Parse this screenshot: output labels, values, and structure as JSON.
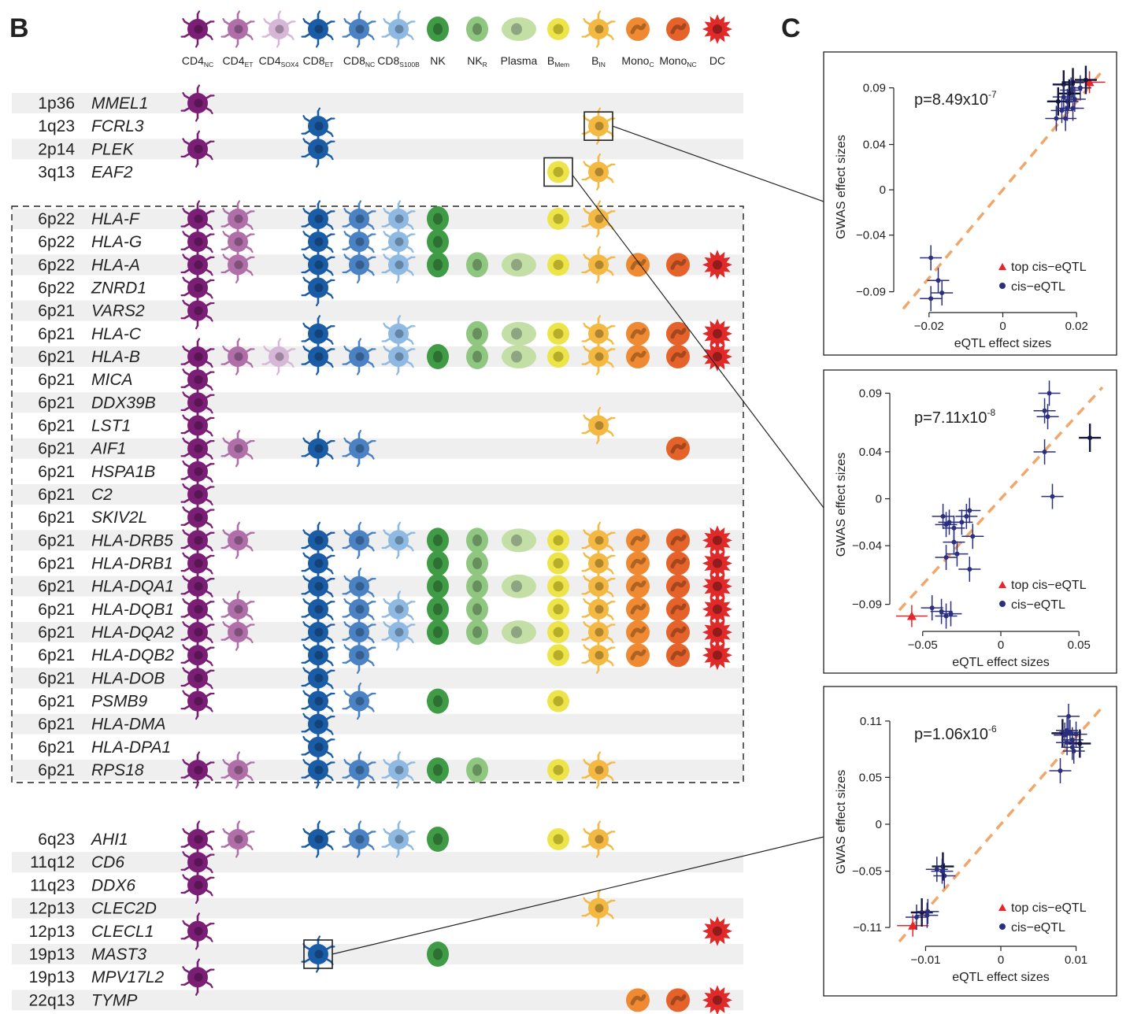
{
  "panel_b": {
    "label": "B",
    "cell_types": [
      {
        "main": "CD4",
        "sub": "NC",
        "color": "#7b1e76",
        "shape": "star"
      },
      {
        "main": "CD4",
        "sub": "ET",
        "color": "#b06fa9",
        "shape": "star"
      },
      {
        "main": "CD4",
        "sub": "SOX4",
        "color": "#d7b7d8",
        "shape": "star"
      },
      {
        "main": "CD8",
        "sub": "ET",
        "color": "#1a5da6",
        "shape": "star"
      },
      {
        "main": "CD8",
        "sub": "NC",
        "color": "#4a82c4",
        "shape": "star"
      },
      {
        "main": "CD8",
        "sub": "S100B",
        "color": "#8db9e2",
        "shape": "star"
      },
      {
        "main": "NK",
        "sub": "",
        "color": "#3f9b45",
        "shape": "oval"
      },
      {
        "main": "NK",
        "sub": "R",
        "color": "#8fc781",
        "shape": "oval"
      },
      {
        "main": "Plasma",
        "sub": "",
        "color": "#c4dfa6",
        "shape": "wide"
      },
      {
        "main": "B",
        "sub": "Mem",
        "color": "#ede44a",
        "shape": "round"
      },
      {
        "main": "B",
        "sub": "IN",
        "color": "#f4b942",
        "shape": "star"
      },
      {
        "main": "Mono",
        "sub": "C",
        "color": "#f08a32",
        "shape": "mono"
      },
      {
        "main": "Mono",
        "sub": "NC",
        "color": "#e5632a",
        "shape": "mono"
      },
      {
        "main": "DC",
        "sub": "",
        "color": "#e02a2a",
        "shape": "dc"
      }
    ],
    "genes": [
      {
        "locus": "1p36",
        "gene": "MMEL1",
        "cells": [
          0
        ]
      },
      {
        "locus": "1q23",
        "gene": "FCRL3",
        "cells": [
          3,
          10
        ]
      },
      {
        "locus": "2p14",
        "gene": "PLEK",
        "cells": [
          0,
          3
        ]
      },
      {
        "locus": "3q13",
        "gene": "EAF2",
        "cells": [
          9,
          10
        ]
      },
      {
        "locus": "6p22",
        "gene": "HLA-F",
        "cells": [
          0,
          1,
          3,
          4,
          5,
          6,
          9,
          10
        ]
      },
      {
        "locus": "6p22",
        "gene": "HLA-G",
        "cells": [
          0,
          1,
          3,
          4,
          5,
          6
        ]
      },
      {
        "locus": "6p22",
        "gene": "HLA-A",
        "cells": [
          0,
          1,
          3,
          4,
          5,
          6,
          7,
          8,
          9,
          10,
          11,
          12,
          13
        ]
      },
      {
        "locus": "6p22",
        "gene": "ZNRD1",
        "cells": [
          0,
          3
        ]
      },
      {
        "locus": "6p21",
        "gene": "VARS2",
        "cells": [
          0
        ]
      },
      {
        "locus": "6p21",
        "gene": "HLA-C",
        "cells": [
          3,
          5,
          7,
          8,
          9,
          10,
          11,
          12,
          13
        ]
      },
      {
        "locus": "6p21",
        "gene": "HLA-B",
        "cells": [
          0,
          1,
          2,
          3,
          4,
          5,
          6,
          7,
          8,
          9,
          10,
          11,
          12,
          13
        ]
      },
      {
        "locus": "6p21",
        "gene": "MICA",
        "cells": [
          0
        ]
      },
      {
        "locus": "6p21",
        "gene": "DDX39B",
        "cells": [
          0
        ]
      },
      {
        "locus": "6p21",
        "gene": "LST1",
        "cells": [
          0,
          10
        ]
      },
      {
        "locus": "6p21",
        "gene": "AIF1",
        "cells": [
          0,
          1,
          3,
          4,
          12
        ]
      },
      {
        "locus": "6p21",
        "gene": "HSPA1B",
        "cells": [
          0
        ]
      },
      {
        "locus": "6p21",
        "gene": "C2",
        "cells": [
          0
        ]
      },
      {
        "locus": "6p21",
        "gene": "SKIV2L",
        "cells": [
          0
        ]
      },
      {
        "locus": "6p21",
        "gene": "HLA-DRB5",
        "cells": [
          0,
          1,
          3,
          4,
          5,
          6,
          7,
          8,
          9,
          10,
          11,
          12,
          13
        ]
      },
      {
        "locus": "6p21",
        "gene": "HLA-DRB1",
        "cells": [
          0,
          3,
          6,
          7,
          9,
          10,
          11,
          12,
          13
        ]
      },
      {
        "locus": "6p21",
        "gene": "HLA-DQA1",
        "cells": [
          0,
          3,
          4,
          6,
          7,
          8,
          9,
          10,
          11,
          12,
          13
        ]
      },
      {
        "locus": "6p21",
        "gene": "HLA-DQB1",
        "cells": [
          0,
          1,
          3,
          4,
          5,
          6,
          7,
          9,
          10,
          11,
          12,
          13
        ]
      },
      {
        "locus": "6p21",
        "gene": "HLA-DQA2",
        "cells": [
          0,
          1,
          3,
          4,
          5,
          6,
          7,
          8,
          9,
          10,
          11,
          12,
          13
        ]
      },
      {
        "locus": "6p21",
        "gene": "HLA-DQB2",
        "cells": [
          0,
          3,
          4,
          9,
          10,
          11,
          12,
          13
        ]
      },
      {
        "locus": "6p21",
        "gene": "HLA-DOB",
        "cells": [
          0,
          3
        ]
      },
      {
        "locus": "6p21",
        "gene": "PSMB9",
        "cells": [
          0,
          3,
          4,
          6,
          9
        ]
      },
      {
        "locus": "6p21",
        "gene": "HLA-DMA",
        "cells": [
          3
        ]
      },
      {
        "locus": "6p21",
        "gene": "HLA-DPA1",
        "cells": [
          3
        ]
      },
      {
        "locus": "6p21",
        "gene": "RPS18",
        "cells": [
          0,
          1,
          3,
          4,
          5,
          6,
          7,
          9,
          10
        ]
      },
      {
        "locus": "6q23",
        "gene": "AHI1",
        "cells": [
          0,
          1,
          3,
          4,
          5,
          6,
          9,
          10
        ]
      },
      {
        "locus": "11q12",
        "gene": "CD6",
        "cells": [
          0
        ]
      },
      {
        "locus": "11q23",
        "gene": "DDX6",
        "cells": [
          0
        ]
      },
      {
        "locus": "12p13",
        "gene": "CLEC2D",
        "cells": [
          10
        ]
      },
      {
        "locus": "12p13",
        "gene": "CLECL1",
        "cells": [
          0,
          13
        ]
      },
      {
        "locus": "19p13",
        "gene": "MAST3",
        "cells": [
          3,
          6
        ]
      },
      {
        "locus": "19p13",
        "gene": "MPV17L2",
        "cells": [
          0
        ]
      },
      {
        "locus": "22q13",
        "gene": "TYMP",
        "cells": [
          11,
          12,
          13
        ]
      }
    ]
  },
  "panel_c": {
    "label": "C",
    "legend": {
      "top": "top cis−eQTL",
      "cis": "cis−eQTL"
    },
    "colors": {
      "top": "#e8262a",
      "cis": "#2b2f7e",
      "dark": "#14163f",
      "diag": "#f0a76c"
    }
  },
  "chart_data": [
    {
      "type": "scatter",
      "title": "",
      "annotation": {
        "p_base": "p=8.49x10",
        "p_exp": "-7"
      },
      "xlabel": "eQTL effect sizes",
      "ylabel": "GWAS effect sizes",
      "xlim": [
        -0.027,
        0.027
      ],
      "ylim": [
        -0.1,
        0.105
      ],
      "xticks": [
        -0.02,
        0,
        0.02
      ],
      "xtick_labels": [
        "−0.02",
        "0",
        "0.02"
      ],
      "yticks": [
        -0.09,
        -0.04,
        0,
        0.04,
        0.09
      ],
      "ytick_labels": [
        "−0.09",
        "−0.04",
        "0",
        "0.04",
        "0.09"
      ],
      "linked_cell": {
        "gene": "FCRL3",
        "cell": "B_IN"
      },
      "points": [
        {
          "x": 0.0235,
          "y": 0.095,
          "top": true
        },
        {
          "x": 0.019,
          "y": 0.095,
          "dark": true
        },
        {
          "x": 0.021,
          "y": 0.09
        },
        {
          "x": 0.0225,
          "y": 0.097,
          "dark": true
        },
        {
          "x": 0.0165,
          "y": 0.093,
          "dark": true
        },
        {
          "x": 0.0185,
          "y": 0.088
        },
        {
          "x": 0.018,
          "y": 0.085,
          "dark": true
        },
        {
          "x": 0.0165,
          "y": 0.082
        },
        {
          "x": 0.0175,
          "y": 0.078
        },
        {
          "x": 0.015,
          "y": 0.078,
          "dark": true
        },
        {
          "x": 0.0195,
          "y": 0.08
        },
        {
          "x": 0.0175,
          "y": 0.072
        },
        {
          "x": 0.016,
          "y": 0.07
        },
        {
          "x": 0.019,
          "y": 0.072
        },
        {
          "x": 0.0145,
          "y": 0.063
        },
        {
          "x": 0.017,
          "y": 0.063
        },
        {
          "x": -0.0195,
          "y": -0.06
        },
        {
          "x": -0.0175,
          "y": -0.08
        },
        {
          "x": -0.0165,
          "y": -0.091
        },
        {
          "x": -0.0195,
          "y": -0.096
        }
      ]
    },
    {
      "type": "scatter",
      "title": "",
      "annotation": {
        "p_base": "p=7.11x10",
        "p_exp": "-8"
      },
      "xlabel": "eQTL effect sizes",
      "ylabel": "GWAS effect sizes",
      "xlim": [
        -0.065,
        0.065
      ],
      "ylim": [
        -0.105,
        0.095
      ],
      "xticks": [
        -0.05,
        0,
        0.05
      ],
      "xtick_labels": [
        "−0.05",
        "0",
        "0.05"
      ],
      "yticks": [
        -0.09,
        -0.04,
        0,
        0.04,
        0.09
      ],
      "ytick_labels": [
        "−0.09",
        "−0.04",
        "0",
        "0.04",
        "0.09"
      ],
      "linked_cell": {
        "gene": "EAF2",
        "cell": "B_Mem"
      },
      "points": [
        {
          "x": -0.057,
          "y": -0.1,
          "top": true
        },
        {
          "x": -0.044,
          "y": -0.093
        },
        {
          "x": -0.038,
          "y": -0.096
        },
        {
          "x": -0.035,
          "y": -0.1
        },
        {
          "x": -0.032,
          "y": -0.098
        },
        {
          "x": -0.035,
          "y": -0.05
        },
        {
          "x": -0.028,
          "y": -0.047
        },
        {
          "x": -0.03,
          "y": -0.037
        },
        {
          "x": -0.02,
          "y": -0.06
        },
        {
          "x": -0.035,
          "y": -0.022
        },
        {
          "x": -0.033,
          "y": -0.02
        },
        {
          "x": -0.03,
          "y": -0.025
        },
        {
          "x": -0.025,
          "y": -0.02
        },
        {
          "x": -0.022,
          "y": -0.015
        },
        {
          "x": -0.018,
          "y": -0.032
        },
        {
          "x": -0.02,
          "y": -0.01
        },
        {
          "x": -0.037,
          "y": -0.015
        },
        {
          "x": 0.028,
          "y": 0.075
        },
        {
          "x": 0.03,
          "y": 0.07
        },
        {
          "x": 0.031,
          "y": 0.09
        },
        {
          "x": 0.028,
          "y": 0.04
        },
        {
          "x": 0.033,
          "y": 0.002
        },
        {
          "x": 0.057,
          "y": 0.052,
          "dark": true
        }
      ]
    },
    {
      "type": "scatter",
      "title": "",
      "annotation": {
        "p_base": "p=1.06x10",
        "p_exp": "-6"
      },
      "xlabel": "eQTL effect sizes",
      "ylabel": "GWAS effect sizes",
      "xlim": [
        -0.0135,
        0.0135
      ],
      "ylim": [
        -0.12,
        0.125
      ],
      "xticks": [
        -0.01,
        0,
        0.01
      ],
      "xtick_labels": [
        "−0.01",
        "0",
        "0.01"
      ],
      "yticks": [
        -0.11,
        -0.05,
        0,
        0.05,
        0.11
      ],
      "ytick_labels": [
        "−0.11",
        "−0.05",
        "0",
        "0.05",
        "0.11"
      ],
      "linked_cell": {
        "gene": "MAST3",
        "cell": "CD8_ET"
      },
      "points": [
        {
          "x": -0.0117,
          "y": -0.108,
          "top": true
        },
        {
          "x": -0.0112,
          "y": -0.099
        },
        {
          "x": -0.0105,
          "y": -0.094,
          "dark": true
        },
        {
          "x": -0.0098,
          "y": -0.097
        },
        {
          "x": -0.0097,
          "y": -0.093
        },
        {
          "x": -0.0075,
          "y": -0.055
        },
        {
          "x": -0.0077,
          "y": -0.045,
          "dark": true
        },
        {
          "x": -0.0085,
          "y": -0.048
        },
        {
          "x": -0.0078,
          "y": -0.05
        },
        {
          "x": 0.0082,
          "y": 0.097,
          "dark": true
        },
        {
          "x": 0.0085,
          "y": 0.095
        },
        {
          "x": 0.009,
          "y": 0.115
        },
        {
          "x": 0.0095,
          "y": 0.09
        },
        {
          "x": 0.0088,
          "y": 0.087
        },
        {
          "x": 0.01,
          "y": 0.096
        },
        {
          "x": 0.0092,
          "y": 0.098
        },
        {
          "x": 0.0105,
          "y": 0.086,
          "dark": true
        },
        {
          "x": 0.0088,
          "y": 0.1
        },
        {
          "x": 0.0097,
          "y": 0.078
        },
        {
          "x": 0.0095,
          "y": 0.082
        },
        {
          "x": 0.0079,
          "y": 0.057
        }
      ]
    }
  ]
}
